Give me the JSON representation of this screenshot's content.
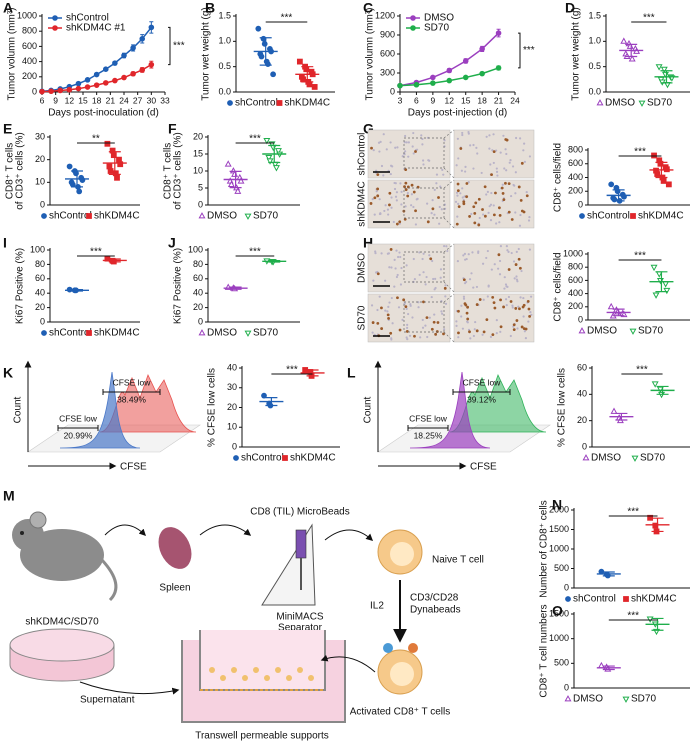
{
  "chart_data": [
    {
      "type": "line",
      "panel": "A",
      "ylabel": [
        "Tumor volumn (mm³)"
      ],
      "xlabel": "Days post-inoculation (d)",
      "x": [
        6,
        8,
        10,
        12,
        14,
        16,
        18,
        20,
        22,
        24,
        26,
        28,
        30
      ],
      "xlim": [
        6,
        33
      ],
      "xticks": [
        6,
        9,
        12,
        15,
        18,
        21,
        24,
        27,
        30,
        33
      ],
      "ylim": [
        0,
        1000
      ],
      "yticks": [
        0,
        200,
        400,
        600,
        800,
        1000
      ],
      "legend": "upper-left",
      "significance": "***",
      "series": [
        {
          "name": "shControl",
          "color": "#1f5fb4",
          "marker": "circle",
          "filled": true,
          "values": [
            10,
            20,
            40,
            70,
            110,
            160,
            230,
            300,
            380,
            480,
            580,
            700,
            850
          ],
          "errors": [
            2,
            3,
            4,
            6,
            8,
            10,
            14,
            18,
            22,
            30,
            40,
            55,
            75
          ]
        },
        {
          "name": "shKDM4C #1",
          "color": "#e0262b",
          "marker": "circle",
          "filled": true,
          "values": [
            5,
            10,
            20,
            30,
            45,
            65,
            90,
            120,
            150,
            190,
            240,
            290,
            360
          ],
          "errors": [
            1,
            2,
            3,
            4,
            5,
            7,
            10,
            12,
            15,
            20,
            25,
            30,
            45
          ]
        }
      ]
    },
    {
      "type": "dot",
      "panel": "B",
      "ylabel": [
        "Tumor wet weight (g)"
      ],
      "ylim": [
        0,
        1.5
      ],
      "yticks": [
        {
          "value": 0,
          "label": "0.0"
        },
        0.5,
        {
          "value": 1,
          "label": "1.0"
        },
        1.5
      ],
      "significance": "***",
      "series": [
        {
          "name": "shControl",
          "color": "#1f5fb4",
          "marker": "circle",
          "filled": true,
          "values": [
            1.25,
            1.05,
            0.95,
            0.85,
            0.8,
            0.75,
            0.7,
            0.6,
            0.55,
            0.35
          ],
          "mean": 0.8,
          "sd": 0.27
        },
        {
          "name": "shKDM4C",
          "color": "#e0262b",
          "marker": "square",
          "filled": true,
          "values": [
            0.6,
            0.5,
            0.45,
            0.4,
            0.35,
            0.3,
            0.25,
            0.2,
            0.15,
            0.1
          ],
          "mean": 0.35,
          "sd": 0.15
        }
      ]
    },
    {
      "type": "line",
      "panel": "C",
      "ylabel": [
        "Tumor volumn (mm³)"
      ],
      "xlabel": "Days post-injection (d)",
      "x": [
        3,
        6,
        9,
        12,
        15,
        18,
        21
      ],
      "xlim": [
        3,
        24
      ],
      "xticks": [
        3,
        6,
        9,
        12,
        15,
        18,
        21,
        24
      ],
      "ylim": [
        0,
        1200
      ],
      "yticks": [
        0,
        300,
        600,
        900,
        1200
      ],
      "legend": "upper-left",
      "significance": "***",
      "series": [
        {
          "name": "DMSO",
          "color": "#9b3fbf",
          "marker": "circle",
          "filled": true,
          "values": [
            100,
            150,
            230,
            340,
            490,
            680,
            930
          ],
          "errors": [
            10,
            15,
            20,
            30,
            35,
            40,
            60
          ]
        },
        {
          "name": "SD70",
          "color": "#1fae4b",
          "marker": "circle",
          "filled": true,
          "values": [
            100,
            115,
            140,
            180,
            230,
            290,
            380
          ],
          "errors": [
            8,
            10,
            12,
            15,
            18,
            22,
            30
          ]
        }
      ]
    },
    {
      "type": "dot",
      "panel": "D",
      "ylabel": [
        "Tumor wet weight (g)"
      ],
      "ylim": [
        0,
        1.5
      ],
      "yticks": [
        {
          "value": 0,
          "label": "0.0"
        },
        0.5,
        {
          "value": 1,
          "label": "1.0"
        },
        1.5
      ],
      "significance": "***",
      "series": [
        {
          "name": "DMSO",
          "color": "#9b3fbf",
          "marker": "triangle-up",
          "filled": false,
          "values": [
            1.0,
            0.95,
            0.9,
            0.85,
            0.8,
            0.75,
            0.7,
            0.65
          ],
          "mean": 0.82,
          "sd": 0.12
        },
        {
          "name": "SD70",
          "color": "#1fae4b",
          "marker": "triangle-down",
          "filled": false,
          "values": [
            0.5,
            0.45,
            0.35,
            0.3,
            0.28,
            0.25,
            0.2,
            0.15
          ],
          "mean": 0.3,
          "sd": 0.12
        }
      ]
    },
    {
      "type": "dot",
      "panel": "E",
      "ylabel": [
        "CD8⁺ T cells",
        "of CD3⁺ cells (%)"
      ],
      "ylim": [
        0,
        30
      ],
      "yticks": [
        0,
        10,
        20,
        30
      ],
      "significance": "**",
      "series": [
        {
          "name": "shControl",
          "color": "#1f5fb4",
          "marker": "circle",
          "filled": true,
          "values": [
            17,
            15,
            14,
            12,
            11,
            10,
            9,
            8,
            6
          ],
          "mean": 11.5,
          "sd": 3.5
        },
        {
          "name": "shKDM4C",
          "color": "#e0262b",
          "marker": "square",
          "filled": true,
          "values": [
            27,
            24,
            22,
            20,
            18,
            17,
            15,
            14,
            12
          ],
          "mean": 18.5,
          "sd": 5
        }
      ]
    },
    {
      "type": "dot",
      "panel": "F",
      "ylabel": [
        "CD8⁺ T cells",
        "of CD3⁺ cells (%)"
      ],
      "ylim": [
        0,
        20
      ],
      "yticks": [
        0,
        5,
        10,
        15,
        20
      ],
      "significance": "***",
      "series": [
        {
          "name": "DMSO",
          "color": "#9b3fbf",
          "marker": "triangle-up",
          "filled": false,
          "values": [
            12,
            10,
            9,
            8,
            7,
            7,
            6,
            5,
            4
          ],
          "mean": 7.5,
          "sd": 2.4
        },
        {
          "name": "SD70",
          "color": "#1fae4b",
          "marker": "triangle-down",
          "filled": false,
          "values": [
            19,
            18,
            17,
            16,
            15,
            14,
            13,
            12,
            11
          ],
          "mean": 15,
          "sd": 2.5
        }
      ]
    },
    {
      "type": "dot",
      "panel": "G",
      "ylabel": [
        "CD8⁺ cells/field"
      ],
      "ylim": [
        0,
        800
      ],
      "yticks": [
        0,
        200,
        400,
        600,
        800
      ],
      "significance": "***",
      "series": [
        {
          "name": "shControl",
          "color": "#1f5fb4",
          "marker": "circle",
          "filled": true,
          "values": [
            300,
            250,
            200,
            150,
            120,
            100,
            80,
            60
          ],
          "mean": 140,
          "sd": 80
        },
        {
          "name": "shKDM4C",
          "color": "#e0262b",
          "marker": "square",
          "filled": true,
          "values": [
            720,
            650,
            600,
            550,
            520,
            500,
            450,
            400,
            350,
            300
          ],
          "mean": 510,
          "sd": 110
        }
      ]
    },
    {
      "type": "dot",
      "panel": "I",
      "ylabel": [
        "Ki67 Positive (%)"
      ],
      "ylim": [
        0,
        100
      ],
      "yticks": [
        0,
        20,
        40,
        60,
        80,
        100
      ],
      "significance": "***",
      "series": [
        {
          "name": "shControl",
          "color": "#1f5fb4",
          "marker": "circle",
          "filled": true,
          "values": [
            45,
            44,
            44
          ],
          "mean": 44,
          "sd": 1
        },
        {
          "name": "shKDM4C",
          "color": "#e0262b",
          "marker": "square",
          "filled": true,
          "values": [
            88,
            85,
            84
          ],
          "mean": 85.5,
          "sd": 2
        }
      ]
    },
    {
      "type": "dot",
      "panel": "J",
      "ylabel": [
        "Ki67 Positive (%)"
      ],
      "ylim": [
        0,
        100
      ],
      "yticks": [
        0,
        20,
        40,
        60,
        80,
        100
      ],
      "significance": "***",
      "series": [
        {
          "name": "DMSO",
          "color": "#9b3fbf",
          "marker": "triangle-up",
          "filled": false,
          "values": [
            48,
            47,
            46
          ],
          "mean": 47,
          "sd": 1.5
        },
        {
          "name": "SD70",
          "color": "#1fae4b",
          "marker": "triangle-down",
          "filled": false,
          "values": [
            85,
            84,
            84
          ],
          "mean": 84.3,
          "sd": 1
        }
      ]
    },
    {
      "type": "dot",
      "panel": "H",
      "ylabel": [
        "CD8⁺ cells/field"
      ],
      "ylim": [
        0,
        1000
      ],
      "yticks": [
        0,
        200,
        400,
        600,
        800,
        1000
      ],
      "significance": "***",
      "series": [
        {
          "name": "DMSO",
          "color": "#9b3fbf",
          "marker": "triangle-up",
          "filled": false,
          "values": [
            200,
            150,
            120,
            100,
            80,
            60
          ],
          "mean": 115,
          "sd": 50
        },
        {
          "name": "SD70",
          "color": "#1fae4b",
          "marker": "triangle-down",
          "filled": false,
          "values": [
            800,
            700,
            600,
            550,
            450,
            380
          ],
          "mean": 580,
          "sd": 150
        }
      ]
    },
    {
      "type": "dot",
      "panel": "K",
      "ylabel": [
        "% CFSE low cells"
      ],
      "ylim": [
        0,
        40
      ],
      "yticks": [
        0,
        10,
        20,
        30,
        40
      ],
      "significance": "***",
      "series": [
        {
          "name": "shControl",
          "color": "#1f5fb4",
          "marker": "circle",
          "filled": true,
          "values": [
            26,
            22,
            21
          ],
          "mean": 23,
          "sd": 2
        },
        {
          "name": "shKDM4C",
          "color": "#e0262b",
          "marker": "square",
          "filled": true,
          "values": [
            39,
            38,
            36
          ],
          "mean": 37.5,
          "sd": 1.5
        }
      ]
    },
    {
      "type": "dot",
      "panel": "L",
      "ylabel": [
        "% CFSE low cells"
      ],
      "ylim": [
        0,
        60
      ],
      "yticks": [
        0,
        20,
        40,
        60
      ],
      "significance": "***",
      "series": [
        {
          "name": "DMSO",
          "color": "#9b3fbf",
          "marker": "triangle-up",
          "filled": false,
          "values": [
            27,
            22,
            20
          ],
          "mean": 23,
          "sd": 2.5
        },
        {
          "name": "SD70",
          "color": "#1fae4b",
          "marker": "triangle-down",
          "filled": false,
          "values": [
            48,
            44,
            40
          ],
          "mean": 43,
          "sd": 3
        }
      ]
    },
    {
      "type": "dot",
      "panel": "N",
      "ylabel": [
        "Number of CD8⁺ cells"
      ],
      "ylim": [
        0,
        2000
      ],
      "yticks": [
        0,
        500,
        1000,
        1500,
        2000
      ],
      "significance": "***",
      "series": [
        {
          "name": "shControl",
          "color": "#1f5fb4",
          "marker": "circle",
          "filled": true,
          "values": [
            420,
            350,
            320
          ],
          "mean": 360,
          "sd": 50
        },
        {
          "name": "shKDM4C",
          "color": "#e0262b",
          "marker": "square",
          "filled": true,
          "values": [
            1800,
            1600,
            1450
          ],
          "mean": 1620,
          "sd": 170
        }
      ]
    },
    {
      "type": "dot",
      "panel": "O",
      "ylabel": [
        "CD8⁺ T cell numbers"
      ],
      "ylim": [
        0,
        1500
      ],
      "yticks": [
        0,
        500,
        1000,
        1500
      ],
      "significance": "***",
      "series": [
        {
          "name": "DMSO",
          "color": "#9b3fbf",
          "marker": "triangle-up",
          "filled": false,
          "values": [
            450,
            420,
            380
          ],
          "mean": 410,
          "sd": 35
        },
        {
          "name": "SD70",
          "color": "#1fae4b",
          "marker": "triangle-down",
          "filled": false,
          "values": [
            1400,
            1300,
            1150
          ],
          "mean": 1290,
          "sd": 120
        }
      ]
    }
  ],
  "micrographs": [
    {
      "rows": [
        "shControl",
        "shKDM4C"
      ]
    },
    {
      "rows": [
        "DMSO",
        "SD70"
      ]
    }
  ],
  "flow": [
    {
      "ylabel": "Count",
      "xlabel": "CFSE",
      "gates": [
        {
          "label": "CFSE low",
          "percent": "20.99%"
        },
        {
          "label": "CFSE low",
          "percent": "38.49%"
        }
      ]
    },
    {
      "ylabel": "Count",
      "xlabel": "CFSE",
      "gates": [
        {
          "label": "CFSE low",
          "percent": "18.25%"
        },
        {
          "label": "CFSE low",
          "percent": "39.12%"
        }
      ]
    }
  ],
  "schematic": {
    "panel": "M",
    "beads": "CD8 (TIL) MicroBeads",
    "spleen": "Spleen",
    "separator": [
      "MiniMACS",
      "Separator"
    ],
    "naive": "Naive T cell",
    "il2": "IL2",
    "dynabeads": [
      "CD3/CD28",
      "Dynabeads"
    ],
    "condition": "shKDM4C/SD70",
    "supernatant": "Supernatant",
    "activated": "Activated CD8⁺ T cells",
    "transwell": "Transwell permeable supports"
  }
}
